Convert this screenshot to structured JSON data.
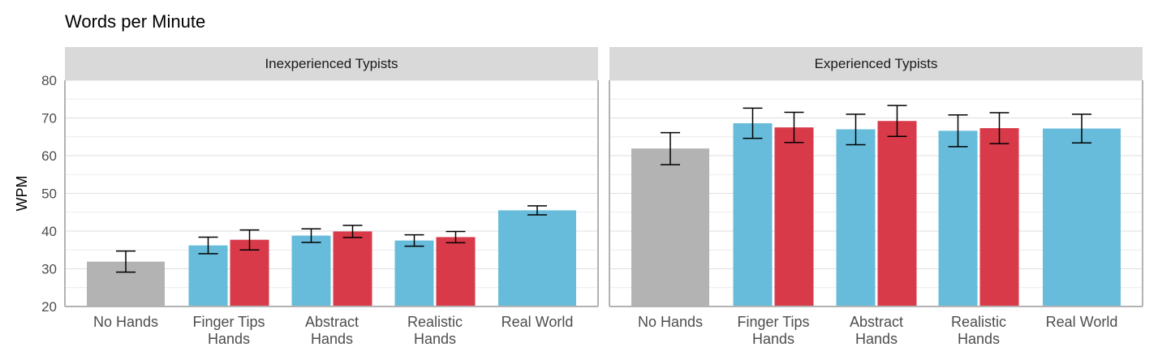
{
  "chart_data": {
    "type": "bar",
    "title": "Words per Minute",
    "ylabel": "WPM",
    "xlabel": "",
    "ylim": [
      20,
      80
    ],
    "yticks": [
      20,
      30,
      40,
      50,
      60,
      70,
      80
    ],
    "grid": true,
    "legend": "none",
    "categories": [
      "No Hands",
      "Finger Tips Hands",
      "Abstract Hands",
      "Realistic Hands",
      "Real World"
    ],
    "category_labels": [
      [
        "No Hands"
      ],
      [
        "Finger Tips",
        "Hands"
      ],
      [
        "Abstract",
        "Hands"
      ],
      [
        "Realistic",
        "Hands"
      ],
      [
        "Real World"
      ]
    ],
    "colors": {
      "gray": "#b3b3b3",
      "blue": "#67bcdb",
      "red": "#d93a49",
      "strip": "#d9d9d9",
      "grid": "#dedede"
    },
    "panels": [
      {
        "name": "Inexperienced Typists",
        "bars": [
          {
            "category": "No Hands",
            "color": "gray",
            "value": 31.9,
            "err_low": 29.1,
            "err_high": 34.7
          },
          {
            "category": "Finger Tips Hands",
            "color": "blue",
            "value": 36.2,
            "err_low": 34.0,
            "err_high": 38.4
          },
          {
            "category": "Finger Tips Hands",
            "color": "red",
            "value": 37.7,
            "err_low": 35.0,
            "err_high": 40.3
          },
          {
            "category": "Abstract Hands",
            "color": "blue",
            "value": 38.8,
            "err_low": 37.0,
            "err_high": 40.6
          },
          {
            "category": "Abstract Hands",
            "color": "red",
            "value": 39.9,
            "err_low": 38.3,
            "err_high": 41.5
          },
          {
            "category": "Realistic Hands",
            "color": "blue",
            "value": 37.5,
            "err_low": 36.0,
            "err_high": 39.0
          },
          {
            "category": "Realistic Hands",
            "color": "red",
            "value": 38.4,
            "err_low": 36.9,
            "err_high": 39.9
          },
          {
            "category": "Real World",
            "color": "blue",
            "value": 45.5,
            "err_low": 44.3,
            "err_high": 46.7
          }
        ]
      },
      {
        "name": "Experienced Typists",
        "bars": [
          {
            "category": "No Hands",
            "color": "gray",
            "value": 61.9,
            "err_low": 57.6,
            "err_high": 66.1
          },
          {
            "category": "Finger Tips Hands",
            "color": "blue",
            "value": 68.6,
            "err_low": 64.6,
            "err_high": 72.6
          },
          {
            "category": "Finger Tips Hands",
            "color": "red",
            "value": 67.5,
            "err_low": 63.5,
            "err_high": 71.5
          },
          {
            "category": "Abstract Hands",
            "color": "blue",
            "value": 67.0,
            "err_low": 62.9,
            "err_high": 71.0
          },
          {
            "category": "Abstract Hands",
            "color": "red",
            "value": 69.2,
            "err_low": 65.1,
            "err_high": 73.3
          },
          {
            "category": "Realistic Hands",
            "color": "blue",
            "value": 66.6,
            "err_low": 62.4,
            "err_high": 70.8
          },
          {
            "category": "Realistic Hands",
            "color": "red",
            "value": 67.3,
            "err_low": 63.2,
            "err_high": 71.4
          },
          {
            "category": "Real World",
            "color": "blue",
            "value": 67.2,
            "err_low": 63.4,
            "err_high": 71.0
          }
        ]
      }
    ]
  }
}
